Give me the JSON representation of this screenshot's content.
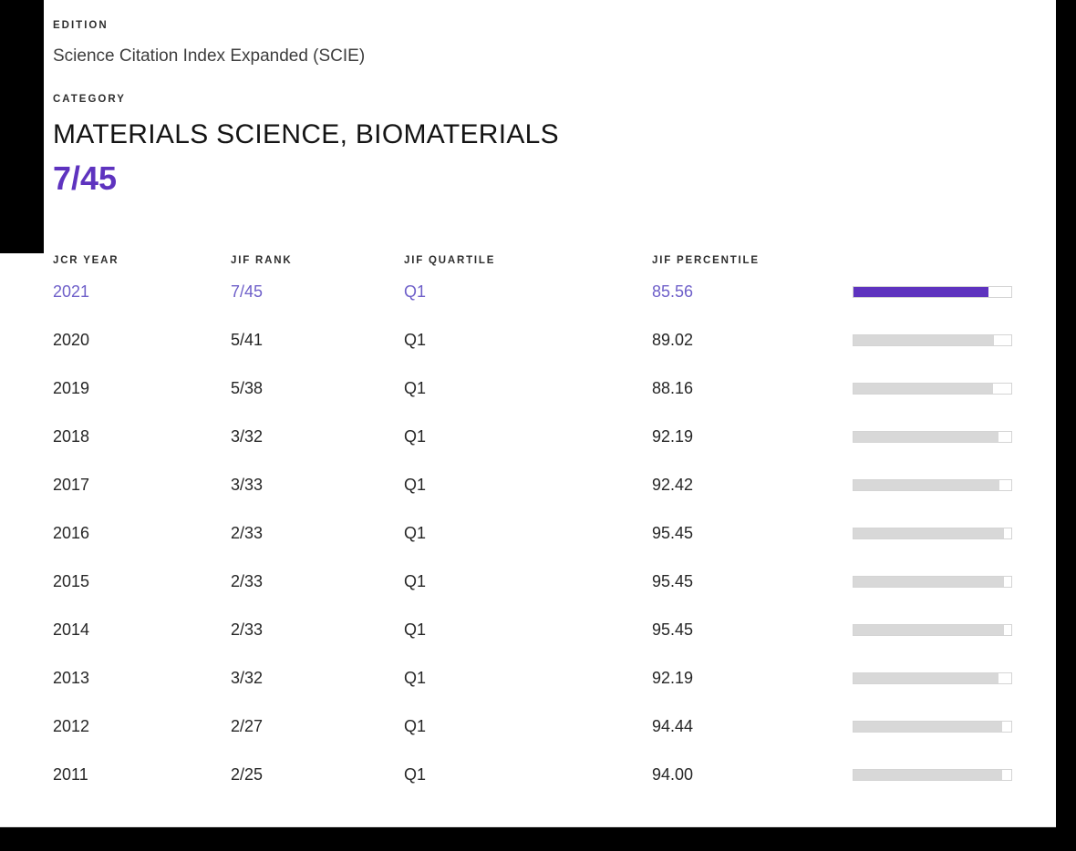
{
  "header": {
    "edition_label": "EDITION",
    "edition_value": "Science Citation Index Expanded (SCIE)",
    "category_label": "CATEGORY",
    "category_value": "MATERIALS SCIENCE, BIOMATERIALS",
    "rank": "7/45"
  },
  "table": {
    "columns": [
      "JCR YEAR",
      "JIF RANK",
      "JIF QUARTILE",
      "JIF PERCENTILE"
    ],
    "rows": [
      {
        "year": "2021",
        "rank": "7/45",
        "quartile": "Q1",
        "percentile": "85.56",
        "highlight": true
      },
      {
        "year": "2020",
        "rank": "5/41",
        "quartile": "Q1",
        "percentile": "89.02",
        "highlight": false
      },
      {
        "year": "2019",
        "rank": "5/38",
        "quartile": "Q1",
        "percentile": "88.16",
        "highlight": false
      },
      {
        "year": "2018",
        "rank": "3/32",
        "quartile": "Q1",
        "percentile": "92.19",
        "highlight": false
      },
      {
        "year": "2017",
        "rank": "3/33",
        "quartile": "Q1",
        "percentile": "92.42",
        "highlight": false
      },
      {
        "year": "2016",
        "rank": "2/33",
        "quartile": "Q1",
        "percentile": "95.45",
        "highlight": false
      },
      {
        "year": "2015",
        "rank": "2/33",
        "quartile": "Q1",
        "percentile": "95.45",
        "highlight": false
      },
      {
        "year": "2014",
        "rank": "2/33",
        "quartile": "Q1",
        "percentile": "95.45",
        "highlight": false
      },
      {
        "year": "2013",
        "rank": "3/32",
        "quartile": "Q1",
        "percentile": "92.19",
        "highlight": false
      },
      {
        "year": "2012",
        "rank": "2/27",
        "quartile": "Q1",
        "percentile": "94.44",
        "highlight": false
      },
      {
        "year": "2011",
        "rank": "2/25",
        "quartile": "Q1",
        "percentile": "94.00",
        "highlight": false
      }
    ]
  },
  "colors": {
    "accent": "#5E33BF",
    "highlight_row_text": "#6E5FC9",
    "bar_fill_default": "#D8D8D8",
    "bar_track_border": "#D4D4D4"
  }
}
